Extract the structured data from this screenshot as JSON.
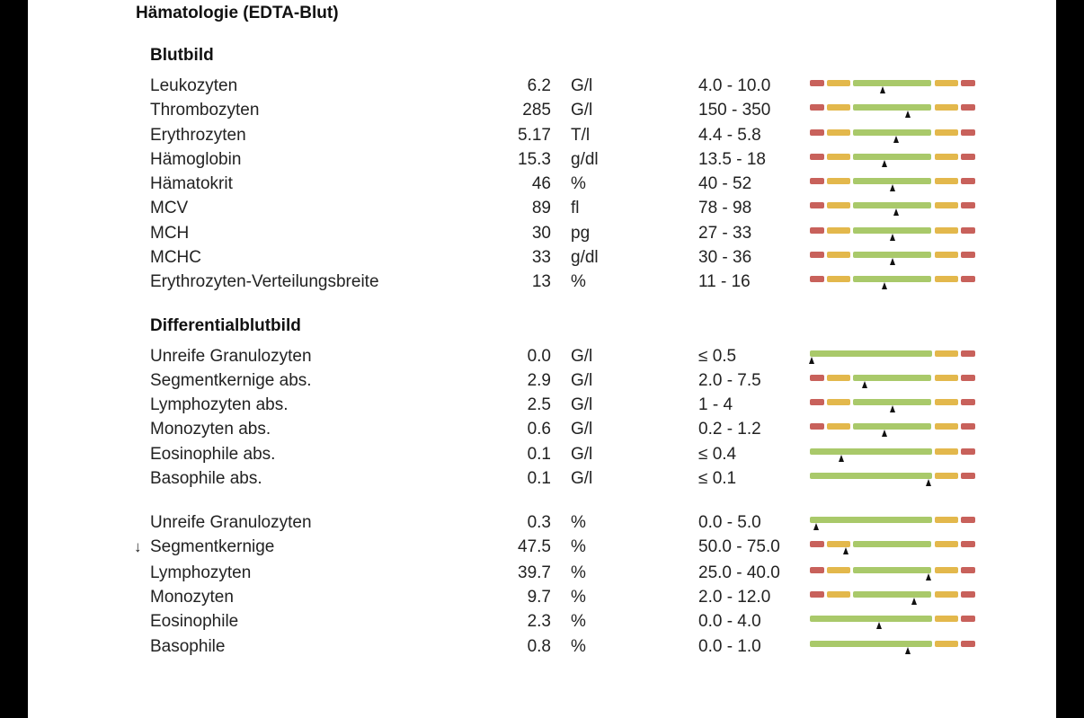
{
  "title": "Hämatologie (EDTA-Blut)",
  "colors": {
    "red": "#c8615b",
    "yellow": "#e3b84c",
    "green": "#a9c96a",
    "marker": "#111111"
  },
  "sections": [
    {
      "title": "Blutbild"
    },
    {
      "title": "Differentialblutbild"
    }
  ],
  "rows": [
    {
      "flag": "",
      "name": "Leukozyten",
      "value": "6.2",
      "unit": "G/l",
      "ref": "4.0 - 10.0",
      "type": "full",
      "pos": 0.44
    },
    {
      "flag": "",
      "name": "Thrombozyten",
      "value": "285",
      "unit": "G/l",
      "ref": "150 - 350",
      "type": "full",
      "pos": 0.59
    },
    {
      "flag": "",
      "name": "Erythrozyten",
      "value": "5.17",
      "unit": "T/l",
      "ref": "4.4 - 5.8",
      "type": "full",
      "pos": 0.52
    },
    {
      "flag": "",
      "name": "Hämoglobin",
      "value": "15.3",
      "unit": "g/dl",
      "ref": "13.5 - 18",
      "type": "full",
      "pos": 0.45
    },
    {
      "flag": "",
      "name": "Hämatokrit",
      "value": "46",
      "unit": "%",
      "ref": "40 - 52",
      "type": "full",
      "pos": 0.5
    },
    {
      "flag": "",
      "name": "MCV",
      "value": "89",
      "unit": "fl",
      "ref": "78 - 98",
      "type": "full",
      "pos": 0.52
    },
    {
      "flag": "",
      "name": "MCH",
      "value": "30",
      "unit": "pg",
      "ref": "27 - 33",
      "type": "full",
      "pos": 0.5
    },
    {
      "flag": "",
      "name": "MCHC",
      "value": "33",
      "unit": "g/dl",
      "ref": "30 - 36",
      "type": "full",
      "pos": 0.5
    },
    {
      "flag": "",
      "name": "Erythrozyten-Verteilungsbreite",
      "value": "13",
      "unit": "%",
      "ref": "11 - 16",
      "type": "full",
      "pos": 0.45
    },
    {
      "flag": "",
      "name": "Unreife Granulozyten",
      "value": "0.0",
      "unit": "G/l",
      "ref": "≤ 0.5",
      "type": "upper",
      "pos": 0.01
    },
    {
      "flag": "",
      "name": "Segmentkernige abs.",
      "value": "2.9",
      "unit": "G/l",
      "ref": "2.0 - 7.5",
      "type": "full",
      "pos": 0.33
    },
    {
      "flag": "",
      "name": "Lymphozyten abs.",
      "value": "2.5",
      "unit": "G/l",
      "ref": "1 - 4",
      "type": "full",
      "pos": 0.5
    },
    {
      "flag": "",
      "name": "Monozyten abs.",
      "value": "0.6",
      "unit": "G/l",
      "ref": "0.2 - 1.2",
      "type": "full",
      "pos": 0.45
    },
    {
      "flag": "",
      "name": "Eosinophile abs.",
      "value": "0.1",
      "unit": "G/l",
      "ref": "≤ 0.4",
      "type": "upper",
      "pos": 0.19
    },
    {
      "flag": "",
      "name": "Basophile abs.",
      "value": "0.1",
      "unit": "G/l",
      "ref": "≤ 0.1",
      "type": "upper",
      "pos": 0.72
    },
    {
      "flag": "",
      "name": "Unreife Granulozyten",
      "value": "0.3",
      "unit": "%",
      "ref": "0.0 - 5.0",
      "type": "upper",
      "pos": 0.04
    },
    {
      "flag": "↓",
      "name": "Segmentkernige",
      "value": "47.5",
      "unit": "%",
      "ref": "50.0 - 75.0",
      "type": "full",
      "pos": 0.22
    },
    {
      "flag": "",
      "name": "Lymphozyten",
      "value": "39.7",
      "unit": "%",
      "ref": "25.0 - 40.0",
      "type": "full",
      "pos": 0.72
    },
    {
      "flag": "",
      "name": "Monozyten",
      "value": "9.7",
      "unit": "%",
      "ref": "2.0 - 12.0",
      "type": "full",
      "pos": 0.63
    },
    {
      "flag": "",
      "name": "Eosinophile",
      "value": "2.3",
      "unit": "%",
      "ref": "0.0 - 4.0",
      "type": "upper",
      "pos": 0.42
    },
    {
      "flag": "",
      "name": "Basophile",
      "value": "0.8",
      "unit": "%",
      "ref": "0.0 - 1.0",
      "type": "upper",
      "pos": 0.59
    }
  ]
}
